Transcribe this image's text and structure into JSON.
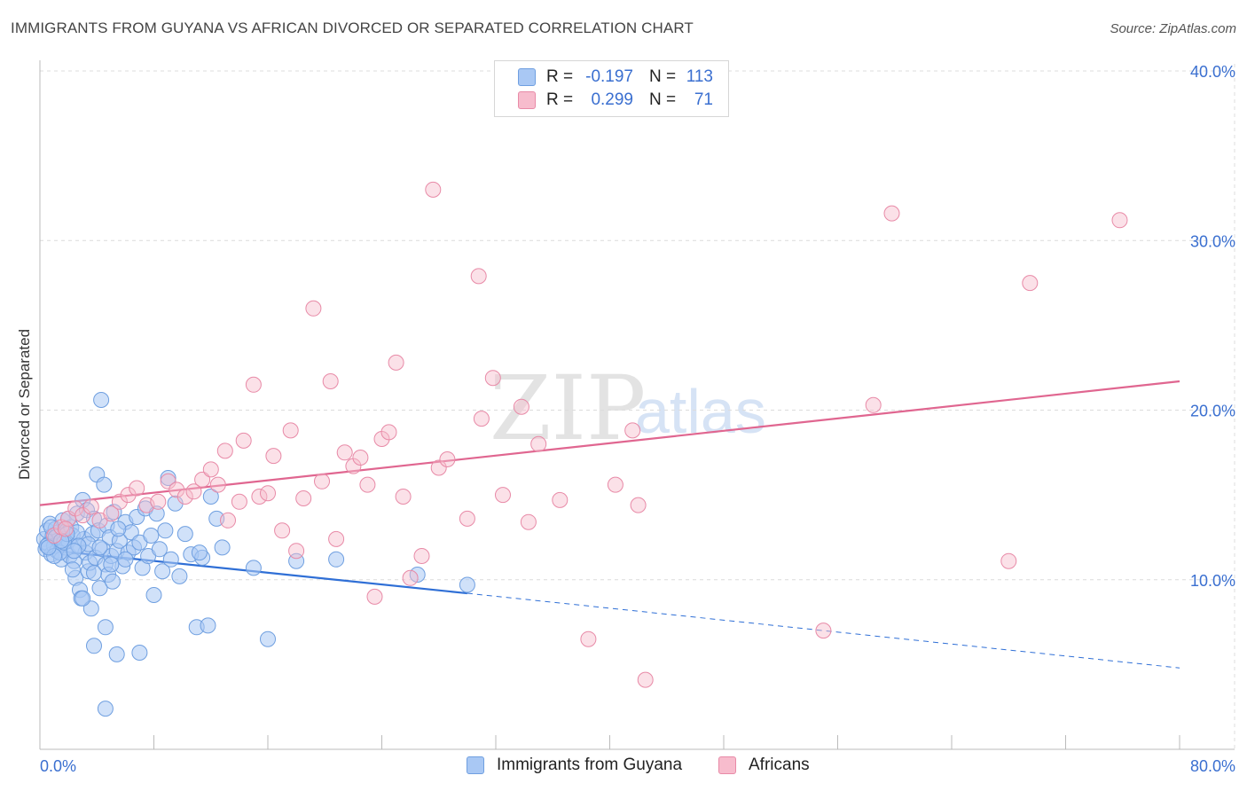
{
  "header": {
    "title": "IMMIGRANTS FROM GUYANA VS AFRICAN DIVORCED OR SEPARATED CORRELATION CHART",
    "source": "Source: ZipAtlas.com"
  },
  "watermark": {
    "zip": "ZIP",
    "atlas": "atlas"
  },
  "legend": {
    "rows": [
      {
        "r_label": "R =",
        "r_value": "-0.197",
        "n_label": "N =",
        "n_value": "113",
        "color": "#a9c8f4",
        "border": "#6f9fe0"
      },
      {
        "r_label": "R =",
        "r_value": "0.299",
        "n_label": "N =",
        "n_value": "71",
        "color": "#f7bccd",
        "border": "#e88aa7"
      }
    ]
  },
  "bottom_legend": [
    {
      "label": "Immigrants from Guyana",
      "color": "#a9c8f4",
      "border": "#6f9fe0"
    },
    {
      "label": "Africans",
      "color": "#f7bccd",
      "border": "#e88aa7"
    }
  ],
  "chart_data": {
    "type": "scatter",
    "title": "IMMIGRANTS FROM GUYANA VS AFRICAN DIVORCED OR SEPARATED CORRELATION CHART",
    "xlabel": "",
    "ylabel": "Divorced or Separated",
    "xlim": [
      0,
      80
    ],
    "ylim": [
      0,
      40
    ],
    "x_tick_labels": [
      "0.0%",
      "80.0%"
    ],
    "y_ticks": [
      10,
      20,
      30,
      40
    ],
    "y_tick_labels": [
      "10.0%",
      "20.0%",
      "30.0%",
      "40.0%"
    ],
    "grid": true,
    "legend_position": "top-center",
    "series": [
      {
        "name": "Immigrants from Guyana",
        "color": "#6f9fe0",
        "fill": "rgba(169,200,244,0.55)",
        "trend": {
          "x0": 0,
          "y0": 11.8,
          "x1": 30,
          "y1": 9.2,
          "dash_to_x": 80,
          "dash_to_y": 4.8,
          "color": "#2f6fd6"
        },
        "points": [
          [
            0.3,
            12.4
          ],
          [
            0.4,
            11.8
          ],
          [
            0.5,
            12.9
          ],
          [
            0.6,
            12.1
          ],
          [
            0.7,
            13.3
          ],
          [
            0.8,
            11.5
          ],
          [
            0.9,
            12.6
          ],
          [
            1.0,
            12.0
          ],
          [
            1.1,
            13.0
          ],
          [
            1.2,
            11.7
          ],
          [
            1.3,
            12.8
          ],
          [
            1.4,
            12.2
          ],
          [
            1.5,
            11.2
          ],
          [
            1.6,
            13.5
          ],
          [
            1.7,
            12.4
          ],
          [
            1.8,
            11.9
          ],
          [
            1.9,
            12.9
          ],
          [
            2.0,
            12.3
          ],
          [
            2.1,
            11.4
          ],
          [
            2.2,
            13.1
          ],
          [
            2.3,
            12.6
          ],
          [
            2.4,
            11.1
          ],
          [
            2.5,
            10.1
          ],
          [
            2.6,
            13.9
          ],
          [
            2.7,
            12.0
          ],
          [
            2.8,
            9.4
          ],
          [
            2.9,
            8.9
          ],
          [
            3.0,
            14.7
          ],
          [
            3.1,
            12.4
          ],
          [
            3.2,
            11.6
          ],
          [
            3.3,
            14.1
          ],
          [
            3.4,
            10.5
          ],
          [
            3.5,
            11.0
          ],
          [
            3.6,
            8.3
          ],
          [
            3.7,
            12.7
          ],
          [
            3.8,
            13.6
          ],
          [
            3.9,
            11.3
          ],
          [
            4.0,
            16.2
          ],
          [
            4.1,
            12.9
          ],
          [
            4.2,
            9.5
          ],
          [
            4.3,
            20.6
          ],
          [
            4.4,
            11.8
          ],
          [
            4.5,
            15.6
          ],
          [
            4.6,
            10.9
          ],
          [
            4.7,
            13.2
          ],
          [
            4.8,
            10.3
          ],
          [
            4.9,
            12.5
          ],
          [
            5.0,
            11.4
          ],
          [
            5.1,
            9.9
          ],
          [
            5.2,
            14.0
          ],
          [
            5.4,
            11.7
          ],
          [
            5.6,
            12.3
          ],
          [
            5.8,
            10.8
          ],
          [
            6.0,
            13.4
          ],
          [
            6.2,
            11.6
          ],
          [
            6.4,
            12.8
          ],
          [
            6.6,
            11.9
          ],
          [
            6.8,
            13.7
          ],
          [
            7.0,
            12.2
          ],
          [
            7.2,
            10.7
          ],
          [
            7.4,
            14.2
          ],
          [
            7.6,
            11.4
          ],
          [
            7.8,
            12.6
          ],
          [
            8.0,
            9.1
          ],
          [
            8.2,
            13.9
          ],
          [
            8.4,
            11.8
          ],
          [
            8.6,
            10.5
          ],
          [
            8.8,
            12.9
          ],
          [
            9.0,
            16.0
          ],
          [
            9.2,
            11.2
          ],
          [
            9.5,
            14.5
          ],
          [
            9.8,
            10.2
          ],
          [
            10.2,
            12.7
          ],
          [
            10.6,
            11.5
          ],
          [
            11.0,
            7.2
          ],
          [
            11.4,
            11.3
          ],
          [
            11.8,
            7.3
          ],
          [
            12.0,
            14.9
          ],
          [
            12.4,
            13.6
          ],
          [
            12.8,
            11.9
          ],
          [
            0.5,
            12.0
          ],
          [
            0.8,
            13.1
          ],
          [
            1.1,
            12.5
          ],
          [
            1.4,
            11.6
          ],
          [
            1.7,
            12.2
          ],
          [
            2.0,
            13.6
          ],
          [
            2.3,
            10.6
          ],
          [
            2.6,
            12.8
          ],
          [
            3.0,
            8.9
          ],
          [
            3.4,
            12.1
          ],
          [
            3.8,
            10.4
          ],
          [
            4.2,
            11.9
          ],
          [
            4.6,
            7.2
          ],
          [
            5.0,
            10.9
          ],
          [
            5.5,
            13.0
          ],
          [
            6.0,
            11.2
          ],
          [
            3.8,
            6.1
          ],
          [
            5.4,
            5.6
          ],
          [
            7.0,
            5.7
          ],
          [
            4.6,
            2.4
          ],
          [
            11.2,
            11.6
          ],
          [
            15.0,
            10.7
          ],
          [
            16.0,
            6.5
          ],
          [
            18.0,
            11.1
          ],
          [
            20.8,
            11.2
          ],
          [
            26.5,
            10.3
          ],
          [
            30.0,
            9.7
          ],
          [
            1.0,
            11.4
          ],
          [
            1.9,
            12.7
          ],
          [
            2.7,
            12.0
          ],
          [
            0.6,
            11.9
          ],
          [
            1.5,
            12.3
          ],
          [
            2.4,
            11.7
          ]
        ]
      },
      {
        "name": "Africans",
        "color": "#e88aa7",
        "fill": "rgba(247,188,205,0.45)",
        "trend": {
          "x0": 0,
          "y0": 14.4,
          "x1": 80,
          "y1": 21.7,
          "color": "#e06690"
        },
        "points": [
          [
            1.0,
            12.6
          ],
          [
            1.5,
            13.1
          ],
          [
            2.0,
            13.6
          ],
          [
            2.5,
            14.2
          ],
          [
            3.0,
            13.8
          ],
          [
            3.6,
            14.3
          ],
          [
            4.2,
            13.5
          ],
          [
            5.0,
            13.9
          ],
          [
            5.6,
            14.6
          ],
          [
            6.2,
            15.0
          ],
          [
            6.8,
            15.4
          ],
          [
            7.5,
            14.4
          ],
          [
            8.3,
            14.6
          ],
          [
            9.0,
            15.8
          ],
          [
            9.6,
            15.3
          ],
          [
            10.2,
            14.9
          ],
          [
            10.8,
            15.2
          ],
          [
            11.4,
            15.9
          ],
          [
            12.0,
            16.5
          ],
          [
            12.5,
            15.6
          ],
          [
            13.0,
            17.6
          ],
          [
            13.2,
            13.5
          ],
          [
            14.0,
            14.6
          ],
          [
            14.3,
            18.2
          ],
          [
            15.0,
            21.5
          ],
          [
            15.4,
            14.9
          ],
          [
            16.0,
            15.1
          ],
          [
            16.4,
            17.3
          ],
          [
            17.0,
            12.9
          ],
          [
            17.6,
            18.8
          ],
          [
            18.0,
            11.7
          ],
          [
            18.5,
            14.8
          ],
          [
            19.2,
            26.0
          ],
          [
            19.8,
            15.8
          ],
          [
            20.4,
            21.7
          ],
          [
            20.8,
            12.4
          ],
          [
            21.4,
            17.5
          ],
          [
            22.0,
            16.7
          ],
          [
            22.5,
            17.2
          ],
          [
            23.0,
            15.6
          ],
          [
            23.5,
            9.0
          ],
          [
            24.0,
            18.3
          ],
          [
            24.5,
            18.7
          ],
          [
            25.0,
            22.8
          ],
          [
            25.5,
            14.9
          ],
          [
            26.0,
            10.1
          ],
          [
            26.8,
            11.4
          ],
          [
            27.6,
            33.0
          ],
          [
            28.0,
            16.6
          ],
          [
            28.6,
            17.1
          ],
          [
            30.0,
            13.6
          ],
          [
            30.8,
            27.9
          ],
          [
            31.0,
            19.5
          ],
          [
            31.8,
            21.9
          ],
          [
            32.5,
            15.0
          ],
          [
            33.8,
            20.2
          ],
          [
            34.3,
            13.4
          ],
          [
            35.0,
            18.0
          ],
          [
            36.5,
            14.7
          ],
          [
            38.5,
            6.5
          ],
          [
            40.4,
            15.6
          ],
          [
            41.6,
            18.8
          ],
          [
            42.0,
            14.4
          ],
          [
            42.5,
            4.1
          ],
          [
            55.0,
            7.0
          ],
          [
            58.5,
            20.3
          ],
          [
            59.8,
            31.6
          ],
          [
            68.0,
            11.1
          ],
          [
            69.5,
            27.5
          ],
          [
            75.8,
            31.2
          ],
          [
            1.8,
            13.0
          ]
        ]
      }
    ]
  }
}
